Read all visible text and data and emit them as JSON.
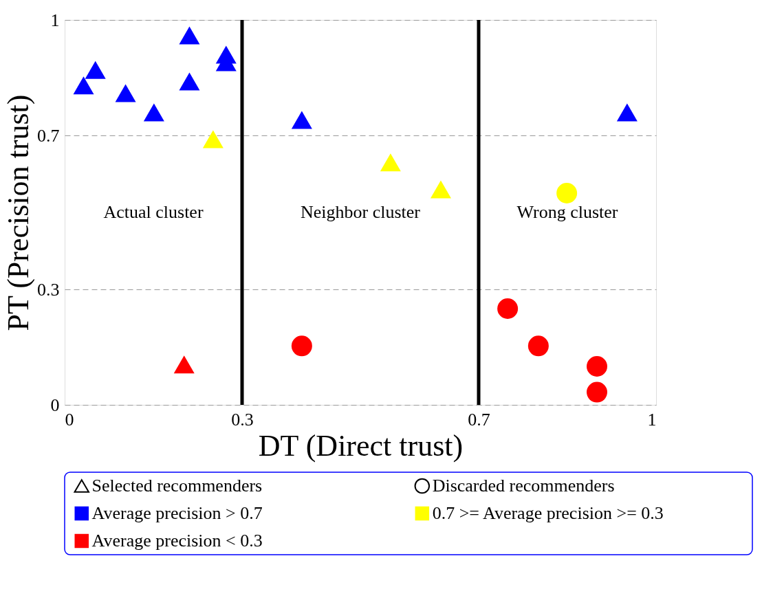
{
  "chart_data": {
    "type": "scatter",
    "xlabel": "DT (Direct trust)",
    "ylabel": "PT (Precision trust)",
    "xlim": [
      0,
      1
    ],
    "ylim": [
      0,
      1
    ],
    "xticks": [
      0,
      0.3,
      0.7,
      1
    ],
    "yticks": [
      0,
      0.3,
      0.7,
      1
    ],
    "grid": "y",
    "legend": "bottom",
    "series": [
      {
        "marker": "triangle",
        "color": "#000000",
        "x": [
          0.032,
          0.052,
          0.103,
          0.151,
          0.211,
          0.211,
          0.273,
          0.273,
          0.401,
          0.951,
          0.251,
          0.551,
          0.636,
          0.202
        ],
        "values": [
          0.83,
          0.87,
          0.81,
          0.76,
          0.84,
          0.96,
          0.91,
          0.89,
          0.74,
          0.76,
          0.69,
          0.63,
          0.56,
          0.105
        ],
        "colors": [
          "#0000ff",
          "#0000ff",
          "#0000ff",
          "#0000ff",
          "#0000ff",
          "#0000ff",
          "#0000ff",
          "#0000ff",
          "#0000ff",
          "#0000ff",
          "#ffff00",
          "#ffff00",
          "#ffff00",
          "#ff0000"
        ]
      },
      {
        "marker": "circle",
        "color": "#000000",
        "x": [
          0.849,
          0.401,
          0.749,
          0.801,
          0.9,
          0.9
        ],
        "values": [
          0.55,
          0.153,
          0.25,
          0.153,
          0.1,
          0.033
        ],
        "colors": [
          "#ffff00",
          "#ff0000",
          "#ff0000",
          "#ff0000",
          "#ff0000",
          "#ff0000"
        ]
      },
      {
        "name": "Average precision > 0.7",
        "marker": "square",
        "color": "#0000ff"
      },
      {
        "name": "0.7 >= Average precision >= 0.3",
        "marker": "square",
        "color": "#ffff00"
      },
      {
        "name": "Average precision < 0.3",
        "marker": "square",
        "color": "#ff0000"
      }
    ],
    "ref_lines": [
      {
        "axis": "x",
        "value": 0.3,
        "color": "#000000"
      },
      {
        "axis": "x",
        "value": 0.7,
        "color": "#000000"
      }
    ],
    "annotations": [
      "Actual cluster",
      "Neighbor cluster",
      "Wrong cluster",
      "Selected recommenders",
      "Discarded recommenders"
    ]
  }
}
